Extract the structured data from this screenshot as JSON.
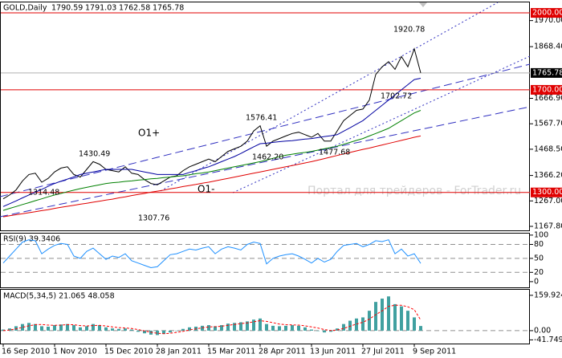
{
  "header": {
    "symbol": "GOLD,Daily",
    "ohlc": [
      "1790.59",
      "1791.03",
      "1762.58",
      "1765.78"
    ]
  },
  "watermark": "Портал для трейдеров - ForTrader.ru",
  "chart_data": [
    {
      "type": "line",
      "ylim": [
        1149,
        2044
      ],
      "yticks": [
        {
          "value": 1970,
          "label": "1970.00"
        },
        {
          "value": 1868.4,
          "label": "1868.40"
        },
        {
          "value": 1666.9,
          "label": "1666.90"
        },
        {
          "value": 1567.7,
          "label": "1567.70"
        },
        {
          "value": 1468.5,
          "label": "1468.50"
        },
        {
          "value": 1366.2,
          "label": "1366.20"
        },
        {
          "value": 1267,
          "label": "1267.00"
        },
        {
          "value": 1167.8,
          "label": "1167.80"
        }
      ],
      "levels": [
        {
          "value": 2000,
          "label": "2000.00",
          "color": "#e00000"
        },
        {
          "value": 1700,
          "label": "1700.00",
          "color": "#e00000"
        },
        {
          "value": 1300,
          "label": "1300.00",
          "color": "#e00000"
        }
      ],
      "last_price": {
        "value": 1765.78,
        "label": "1765.78",
        "color": "#000000"
      },
      "annotations": [
        "1314.48",
        "1430.49",
        "1307.76",
        "1576.41",
        "1462.20",
        "1477.68",
        "1702.72",
        "1920.78",
        "O1+",
        "O1-"
      ],
      "series": [
        {
          "color": "#000000",
          "values": [
            1275,
            1290,
            1310,
            1345,
            1370,
            1375,
            1340,
            1355,
            1380,
            1395,
            1400,
            1370,
            1360,
            1390,
            1420,
            1410,
            1390,
            1385,
            1380,
            1400,
            1375,
            1370,
            1350,
            1335,
            1330,
            1345,
            1360,
            1365,
            1385,
            1400,
            1410,
            1420,
            1430,
            1420,
            1440,
            1460,
            1470,
            1480,
            1500,
            1540,
            1560,
            1480,
            1500,
            1510,
            1520,
            1530,
            1535,
            1525,
            1515,
            1530,
            1500,
            1500,
            1540,
            1580,
            1600,
            1620,
            1625,
            1660,
            1760,
            1790,
            1810,
            1780,
            1830,
            1790,
            1860,
            1765.78
          ]
        },
        {
          "color": "#0000a0",
          "values": [
            1245,
            1256,
            1267,
            1279,
            1290,
            1301,
            1312,
            1324,
            1335,
            1344,
            1352,
            1361,
            1370,
            1375,
            1380,
            1385,
            1390,
            1390,
            1390,
            1390,
            1390,
            1385,
            1380,
            1375,
            1370,
            1370,
            1370,
            1370,
            1370,
            1378,
            1385,
            1393,
            1400,
            1410,
            1420,
            1430,
            1440,
            1452,
            1465,
            1478,
            1490,
            1492,
            1495,
            1498,
            1500,
            1502,
            1505,
            1508,
            1510,
            1514,
            1518,
            1521,
            1525,
            1539,
            1552,
            1566,
            1580,
            1600,
            1620,
            1640,
            1660,
            1680,
            1700,
            1720,
            1740,
            1745
          ]
        },
        {
          "color": "#008000",
          "values": [
            1230,
            1238,
            1245,
            1253,
            1260,
            1268,
            1275,
            1283,
            1290,
            1296,
            1303,
            1309,
            1315,
            1320,
            1325,
            1330,
            1335,
            1338,
            1340,
            1343,
            1345,
            1348,
            1350,
            1353,
            1355,
            1358,
            1360,
            1363,
            1365,
            1369,
            1373,
            1376,
            1380,
            1385,
            1390,
            1395,
            1400,
            1405,
            1410,
            1415,
            1420,
            1426,
            1433,
            1439,
            1445,
            1449,
            1453,
            1456,
            1460,
            1465,
            1470,
            1475,
            1480,
            1488,
            1495,
            1503,
            1510,
            1520,
            1530,
            1540,
            1550,
            1565,
            1580,
            1595,
            1610,
            1620
          ]
        },
        {
          "color": "#e00000",
          "values": [
            1205,
            1209,
            1213,
            1217,
            1221,
            1225,
            1229,
            1233,
            1238,
            1242,
            1246,
            1250,
            1254,
            1258,
            1262,
            1266,
            1270,
            1274,
            1279,
            1283,
            1288,
            1292,
            1296,
            1301,
            1305,
            1309,
            1314,
            1318,
            1323,
            1327,
            1331,
            1336,
            1340,
            1345,
            1350,
            1355,
            1360,
            1365,
            1370,
            1375,
            1380,
            1385,
            1390,
            1395,
            1400,
            1405,
            1410,
            1415,
            1420,
            1426,
            1432,
            1438,
            1444,
            1450,
            1456,
            1462,
            1468,
            1473,
            1479,
            1485,
            1491,
            1497,
            1503,
            1509,
            1515,
            1520
          ]
        }
      ]
    },
    {
      "type": "line",
      "title": "RSI(9) 39.3406",
      "ylim": [
        -14,
        105
      ],
      "yticks": [
        100,
        80,
        50,
        20,
        0
      ],
      "series": [
        {
          "color": "#1e90ff",
          "values": [
            40,
            55,
            70,
            85,
            90,
            88,
            60,
            70,
            78,
            82,
            80,
            55,
            50,
            65,
            72,
            60,
            48,
            55,
            52,
            60,
            45,
            40,
            35,
            30,
            32,
            45,
            58,
            60,
            65,
            70,
            68,
            72,
            75,
            60,
            70,
            75,
            72,
            68,
            80,
            85,
            82,
            38,
            50,
            55,
            58,
            60,
            55,
            48,
            40,
            50,
            42,
            48,
            65,
            78,
            80,
            82,
            75,
            80,
            88,
            86,
            90,
            60,
            70,
            55,
            60,
            39.3406
          ]
        }
      ]
    },
    {
      "type": "bar",
      "title": "MACD(5,34,5) 21.065 48.058",
      "ylim": [
        -62,
        185
      ],
      "yticks": [
        159.924,
        {
          "value": 0,
          "label": "0.00"
        },
        -41.749
      ],
      "categories": [
        "16 Sep 2010",
        null,
        null,
        null,
        null,
        null,
        null,
        null,
        "1 Nov 2010",
        null,
        null,
        null,
        null,
        null,
        null,
        null,
        "15 Dec 2010",
        null,
        null,
        null,
        null,
        null,
        null,
        null,
        "28 Jan 2011",
        null,
        null,
        null,
        null,
        null,
        null,
        null,
        "15 Mar 2011",
        null,
        null,
        null,
        null,
        null,
        null,
        null,
        "28 Apr 2011",
        null,
        null,
        null,
        null,
        null,
        null,
        null,
        "13 Jun 2011",
        null,
        null,
        null,
        null,
        null,
        null,
        null,
        "27 Jul 2011",
        null,
        null,
        null,
        null,
        null,
        null,
        null,
        "9 Sep 2011",
        null
      ],
      "color": "#40a0a0",
      "values": [
        5,
        10,
        20,
        30,
        35,
        30,
        20,
        18,
        25,
        28,
        30,
        25,
        15,
        20,
        30,
        25,
        15,
        10,
        8,
        10,
        5,
        -5,
        -12,
        -18,
        -20,
        -15,
        -8,
        0,
        8,
        15,
        18,
        22,
        25,
        20,
        25,
        32,
        35,
        38,
        42,
        50,
        55,
        30,
        22,
        20,
        22,
        25,
        22,
        15,
        5,
        0,
        -8,
        -5,
        10,
        30,
        45,
        55,
        60,
        90,
        130,
        145,
        155,
        120,
        110,
        90,
        60,
        21.065
      ],
      "signal": {
        "color": "#ff0000",
        "values": [
          0,
          3,
          8,
          15,
          22,
          27,
          28,
          25,
          24,
          25,
          27,
          27,
          23,
          21,
          23,
          24,
          21,
          17,
          14,
          12,
          10,
          5,
          -1,
          -7,
          -12,
          -14,
          -12,
          -8,
          -3,
          3,
          8,
          13,
          17,
          18,
          20,
          24,
          28,
          32,
          35,
          40,
          45,
          42,
          36,
          30,
          27,
          26,
          25,
          22,
          17,
          12,
          5,
          1,
          3,
          10,
          20,
          30,
          38,
          52,
          72,
          90,
          110,
          115,
          115,
          108,
          95,
          48.058
        ]
      }
    }
  ]
}
